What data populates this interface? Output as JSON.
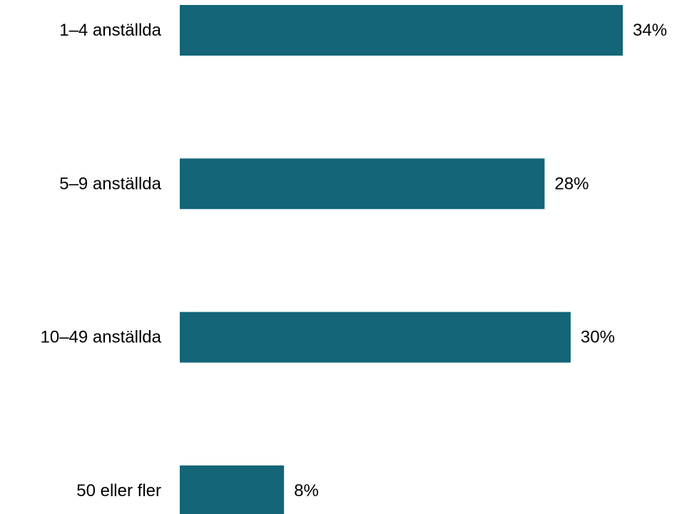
{
  "chart_data": {
    "type": "bar",
    "orientation": "horizontal",
    "categories": [
      "1–4 anställda",
      "5–9 anställda",
      "10–49 anställda",
      "50 eller fler"
    ],
    "values": [
      34,
      28,
      30,
      8
    ],
    "value_labels": [
      "34%",
      "28%",
      "30%",
      "8%"
    ],
    "unit": "%",
    "xlim": [
      0,
      34
    ],
    "grid": false,
    "bar_color": "#136577"
  }
}
